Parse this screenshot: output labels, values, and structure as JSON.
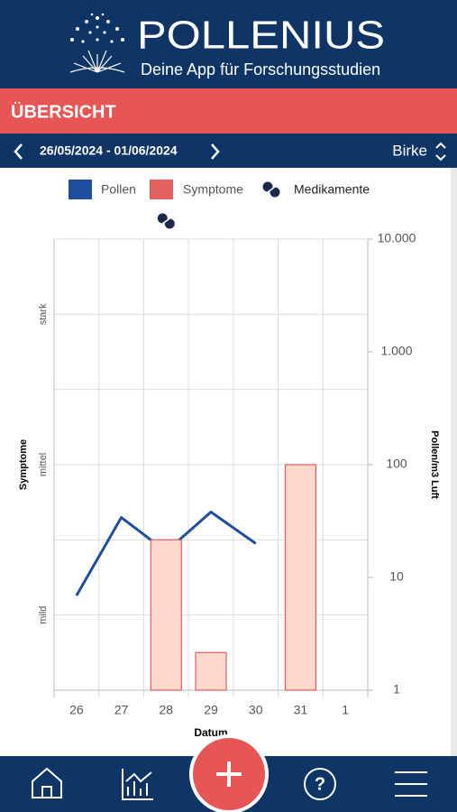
{
  "header": {
    "title": "POLLENIUS",
    "subtitle": "Deine App für Forschungsstudien"
  },
  "section": "ÜBERSICHT",
  "date_range": "26/05/2024 - 01/06/2024",
  "plant": "Birke",
  "chart_data": {
    "type": "bar_line",
    "categories": [
      "26",
      "27",
      "28",
      "29",
      "30",
      "31",
      "1"
    ],
    "xlabel": "Datum",
    "ylabel": "Symptome",
    "y2label": "Pollen/m3 Luft",
    "series": [
      {
        "name": "Pollen",
        "color": "#1f4e9c",
        "axis": "y2",
        "type": "line",
        "values": [
          6.9,
          34,
          17,
          38,
          20,
          null,
          null
        ]
      },
      {
        "name": "Symptome",
        "color": "#e06060",
        "fill": "#fdd9cc",
        "type": "bar",
        "values": [
          0,
          0,
          2,
          0.5,
          0,
          3,
          0
        ]
      }
    ],
    "medication": {
      "name": "Medikamente",
      "days": [
        "28"
      ]
    },
    "ylim": [
      0,
      6
    ],
    "yticks": [
      {
        "value": 1,
        "label": "mild"
      },
      {
        "value": 3,
        "label": "mittel"
      },
      {
        "value": 5,
        "label": "stark"
      }
    ],
    "minor_yticks": [
      0,
      2,
      4,
      6
    ],
    "y2lim": [
      1,
      10000
    ],
    "y2scale": "log",
    "y2ticks": [
      1,
      10,
      100,
      {
        "value": 1000,
        "label": "1.000"
      },
      {
        "value": 10000,
        "label": "10.000"
      }
    ],
    "grid": true
  }
}
